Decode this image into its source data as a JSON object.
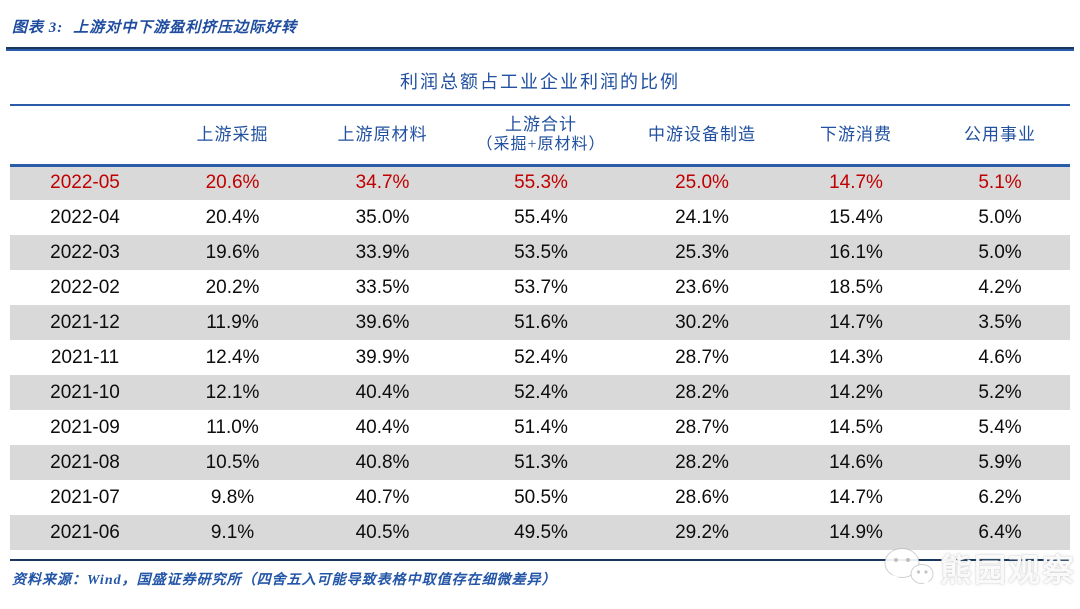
{
  "page": {
    "figure_label": "图表 3:",
    "figure_title": "上游对中下游盈利挤压边际好转",
    "source_note": "资料来源：Wind，国盛证券研究所（四舍五入可能导致表格中取值存在细微差异）",
    "watermark_text": "熊园观察",
    "watermark_icon": "wechat-icon"
  },
  "colors": {
    "blue_text": "#2151a0",
    "line_blue": "#2a5caa",
    "line_navy": "#17375e",
    "highlight_red": "#c00000",
    "stripe_gray": "#d9d9d9"
  },
  "chart_data": {
    "type": "table",
    "title": "利润总额占工业企业利润的比例",
    "columns": [
      {
        "label": ""
      },
      {
        "label": "上游采掘"
      },
      {
        "label": "上游原材料"
      },
      {
        "label": "上游合计",
        "sublabel": "（采掘+原材料）"
      },
      {
        "label": "中游设备制造"
      },
      {
        "label": "下游消费"
      },
      {
        "label": "公用事业"
      }
    ],
    "rows": [
      [
        "2022-05",
        "20.6%",
        "34.7%",
        "55.3%",
        "25.0%",
        "14.7%",
        "5.1%"
      ],
      [
        "2022-04",
        "20.4%",
        "35.0%",
        "55.4%",
        "24.1%",
        "15.4%",
        "5.0%"
      ],
      [
        "2022-03",
        "19.6%",
        "33.9%",
        "53.5%",
        "25.3%",
        "16.1%",
        "5.0%"
      ],
      [
        "2022-02",
        "20.2%",
        "33.5%",
        "53.7%",
        "23.6%",
        "18.5%",
        "4.2%"
      ],
      [
        "2021-12",
        "11.9%",
        "39.6%",
        "51.6%",
        "30.2%",
        "14.7%",
        "3.5%"
      ],
      [
        "2021-11",
        "12.4%",
        "39.9%",
        "52.4%",
        "28.7%",
        "14.3%",
        "4.6%"
      ],
      [
        "2021-10",
        "12.1%",
        "40.4%",
        "52.4%",
        "28.2%",
        "14.2%",
        "5.2%"
      ],
      [
        "2021-09",
        "11.0%",
        "40.4%",
        "51.4%",
        "28.7%",
        "14.5%",
        "5.4%"
      ],
      [
        "2021-08",
        "10.5%",
        "40.8%",
        "51.3%",
        "28.2%",
        "14.6%",
        "5.9%"
      ],
      [
        "2021-07",
        "9.8%",
        "40.7%",
        "50.5%",
        "28.6%",
        "14.7%",
        "6.2%"
      ],
      [
        "2021-06",
        "9.1%",
        "40.5%",
        "49.5%",
        "29.2%",
        "14.9%",
        "6.4%"
      ]
    ],
    "highlight_row": "2022-05",
    "stripe_pattern": "odd-rows-gray",
    "legend_position": "none",
    "grid": "horizontal-stripes"
  }
}
